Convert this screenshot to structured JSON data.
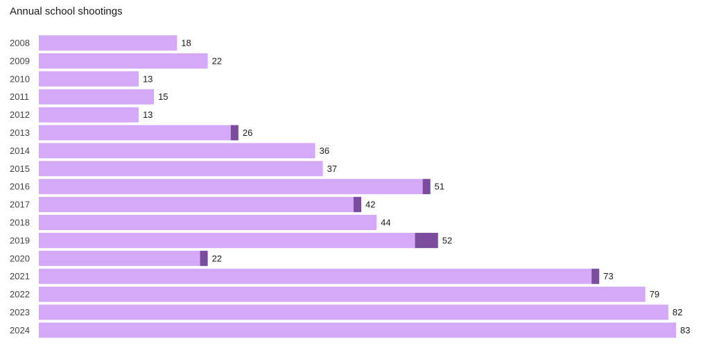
{
  "chart_data": {
    "type": "bar",
    "orientation": "horizontal",
    "stacked": true,
    "title": "Annual school shootings",
    "xlabel": "",
    "ylabel": "",
    "xlim": [
      0,
      83
    ],
    "grid": false,
    "legend": "none",
    "categories": [
      "2008",
      "2009",
      "2010",
      "2011",
      "2012",
      "2013",
      "2014",
      "2015",
      "2016",
      "2017",
      "2018",
      "2019",
      "2020",
      "2021",
      "2022",
      "2023",
      "2024"
    ],
    "totals": [
      18,
      22,
      13,
      15,
      13,
      26,
      36,
      37,
      51,
      42,
      44,
      52,
      22,
      73,
      79,
      82,
      83
    ],
    "series": [
      {
        "color": "#d4a9f7",
        "values": [
          18,
          22,
          13,
          15,
          13,
          25,
          36,
          37,
          50,
          41,
          44,
          49,
          21,
          72,
          79,
          82,
          83
        ]
      },
      {
        "color": "#7b4b9e",
        "values": [
          0,
          0,
          0,
          0,
          0,
          1,
          0,
          0,
          1,
          1,
          0,
          3,
          1,
          1,
          0,
          0,
          0
        ]
      }
    ]
  }
}
